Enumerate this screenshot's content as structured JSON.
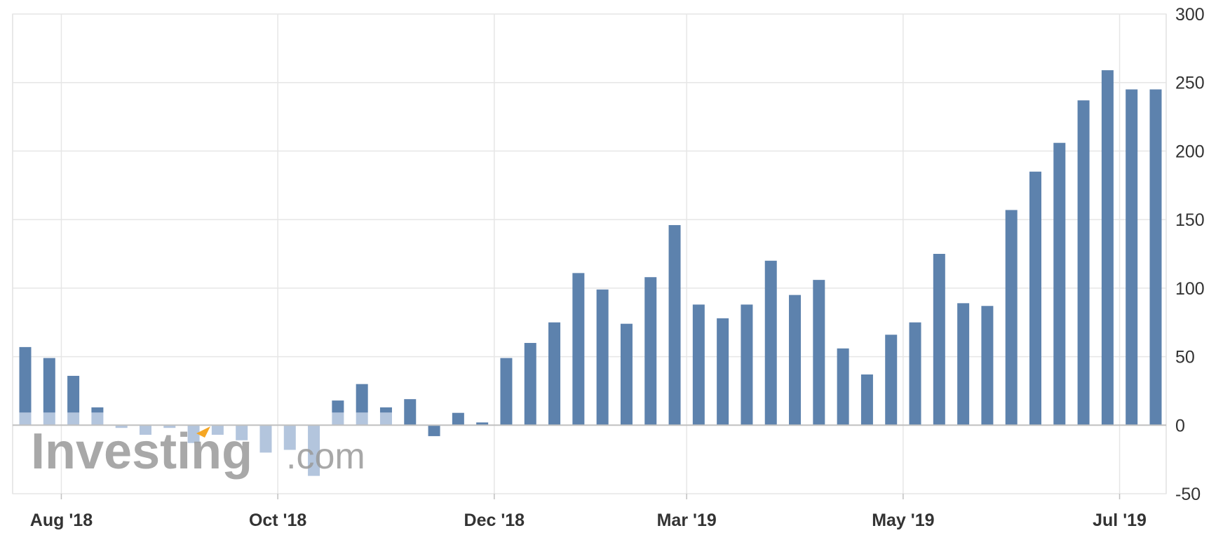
{
  "chart_data": {
    "type": "bar",
    "ylim": [
      -50,
      300
    ],
    "y_ticks": [
      "300",
      "250",
      "200",
      "150",
      "100",
      "50",
      "0",
      "-50"
    ],
    "y_tick_values": [
      300,
      250,
      200,
      150,
      100,
      50,
      0,
      -50
    ],
    "x_ticks": [
      {
        "label": "Aug '18",
        "position": 1.5
      },
      {
        "label": "Oct '18",
        "position": 10.5
      },
      {
        "label": "Dec '18",
        "position": 19.5
      },
      {
        "label": "Mar '19",
        "position": 27.5
      },
      {
        "label": "May '19",
        "position": 36.5
      },
      {
        "label": "Jul '19",
        "position": 45.5
      }
    ],
    "values": [
      57,
      49,
      36,
      13,
      -2,
      -7,
      -2,
      -13,
      -7,
      -11,
      -20,
      -18,
      -37,
      18,
      30,
      13,
      19,
      -8,
      9,
      2,
      49,
      60,
      75,
      111,
      99,
      74,
      108,
      146,
      88,
      78,
      88,
      120,
      95,
      106,
      56,
      37,
      66,
      75,
      125,
      89,
      87,
      157,
      185,
      206,
      237,
      259,
      245,
      245
    ],
    "grid": true,
    "colors": {
      "bar": "#5d82ad",
      "bar_faded": "#b3c5dd",
      "grid": "#e6e6e6",
      "axis": "#c0c0c0"
    }
  },
  "watermark": {
    "main": "Investing",
    "suffix": ".com",
    "accent_color": "#f5a623"
  }
}
